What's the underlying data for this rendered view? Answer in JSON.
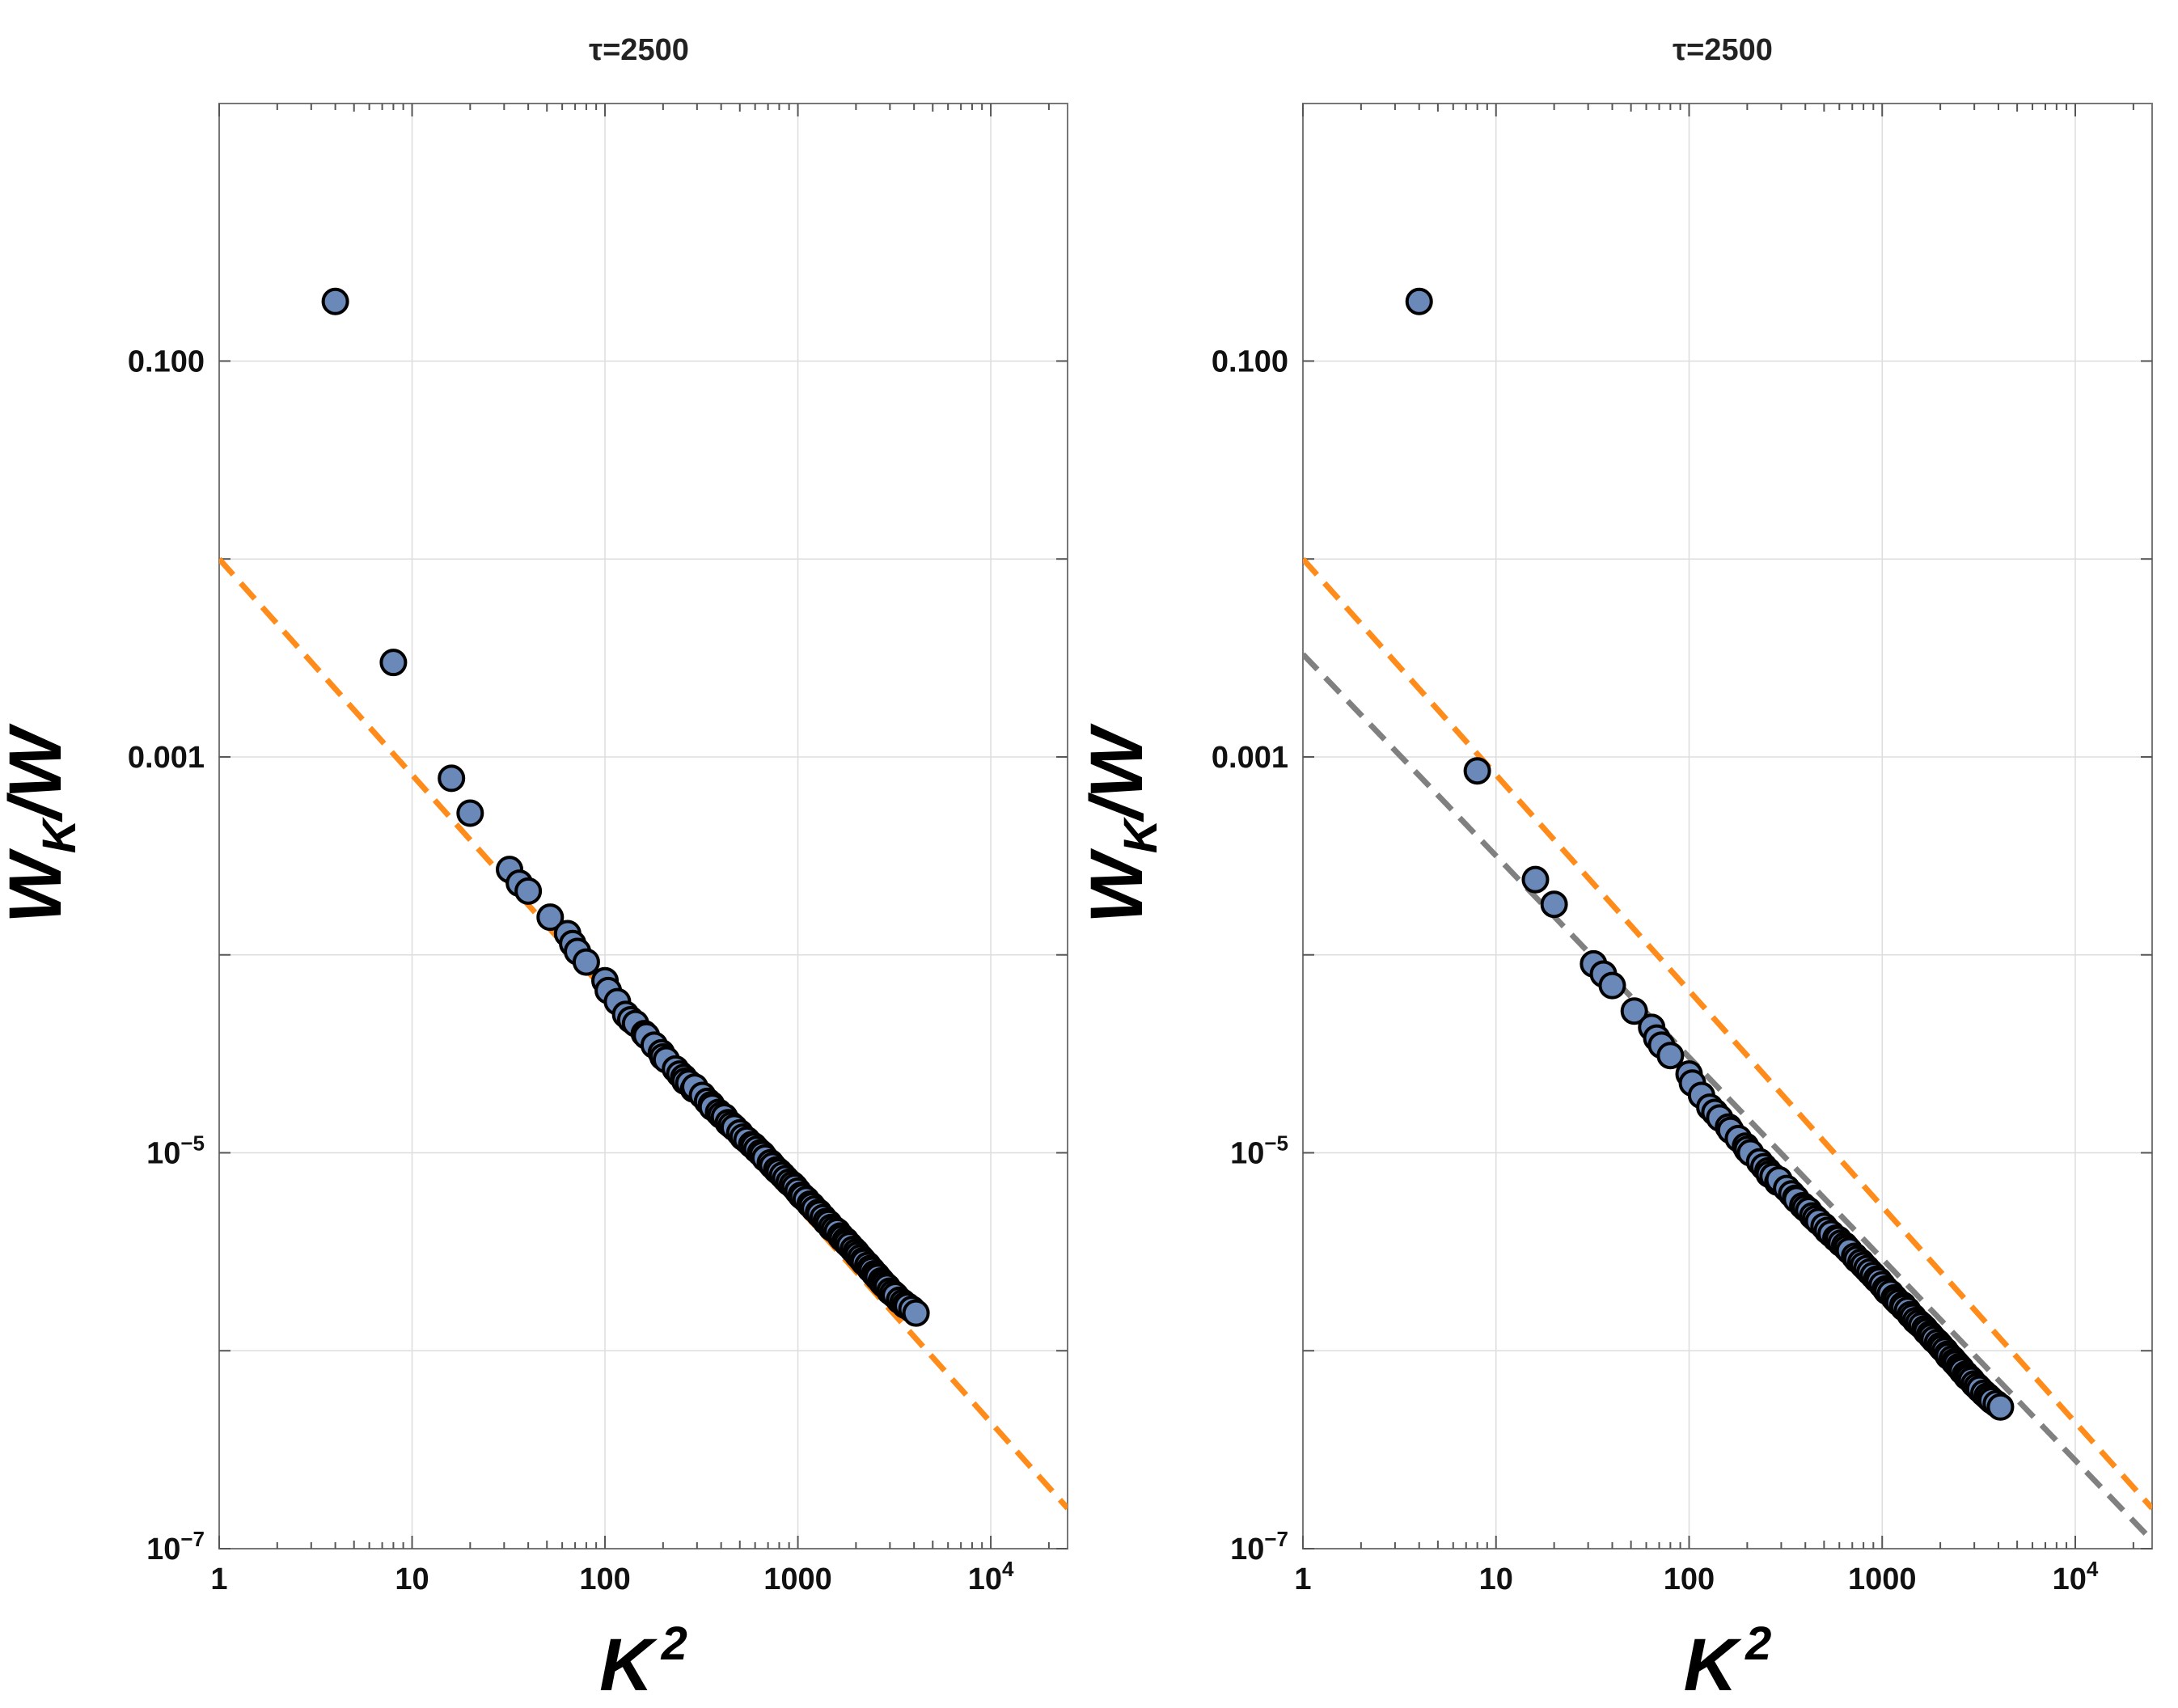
{
  "figure": {
    "panels_count": 2
  },
  "colors": {
    "marker_fill": "#6a88b8",
    "marker_edge": "#000000",
    "orange": "#ff8c1a",
    "gray": "#808080",
    "grid": "#dddddd",
    "frame": "#777777"
  },
  "chart_data": [
    {
      "type": "scatter",
      "title": "τ=2500",
      "xlabel": "K²",
      "ylabel": "W_K/W",
      "xlabel_main": "K",
      "xlabel_sup": "2",
      "ylabel_main": "W",
      "ylabel_sub": "K",
      "ylabel_tail": "/W",
      "xscale": "log",
      "yscale": "log",
      "xlim": [
        1,
        25000
      ],
      "ylim": [
        1e-07,
        2
      ],
      "grid": true,
      "x_ticks": [
        {
          "value": 1,
          "label": "1"
        },
        {
          "value": 10,
          "label": "10"
        },
        {
          "value": 100,
          "label": "100"
        },
        {
          "value": 1000,
          "label": "1000"
        },
        {
          "value": 10000,
          "label": "10",
          "exp": "4"
        }
      ],
      "y_ticks": [
        {
          "value": 0.1,
          "label": "0.100"
        },
        {
          "value": 0.001,
          "label": "0.001"
        },
        {
          "value": 1e-05,
          "label": "10",
          "exp": "−5"
        },
        {
          "value": 1e-07,
          "label": "10",
          "exp": "−7"
        }
      ],
      "y_minor_ticks": [
        0.01,
        0.0001,
        1e-06
      ],
      "lines": [
        {
          "name": "orange fit",
          "color": "#ff8c1a",
          "style": "dashed",
          "x": [
            1,
            25000
          ],
          "y": [
            0.01,
            1.6e-07
          ]
        }
      ],
      "series": [
        {
          "name": "data",
          "x": [
            4,
            8,
            16,
            20,
            32,
            36,
            40,
            52,
            64,
            68,
            72,
            80,
            100,
            104,
            116,
            128,
            136,
            144,
            160,
            164,
            180,
            196,
            200,
            208,
            232,
            244,
            256,
            260,
            272,
            288,
            292,
            320,
            340,
            356,
            360,
            388,
            400,
            416,
            436,
            452,
            468,
            500,
            520,
            544,
            576,
            592,
            612,
            640,
            656,
            676,
            720,
            740,
            776,
            800,
            832,
            864,
            900,
            936,
            964,
            1000,
            1040,
            1060,
            1104,
            1156,
            1184,
            1220,
            1280,
            1296,
            1352,
            1400,
            1444,
            1492,
            1544,
            1600,
            1664,
            1700,
            1764,
            1800,
            1856,
            1936,
            2000,
            2048,
            2116,
            2180,
            2208,
            2304,
            2368,
            2420,
            2500,
            2560,
            2600,
            2704,
            2752,
            2816,
            2900,
            3000,
            3104,
            3200,
            3364,
            3500,
            3600,
            3700,
            3900,
            4096
          ],
          "y": [
            0.2,
            0.003,
            0.00078,
            0.00052,
            0.00027,
            0.00023,
            0.00021,
            0.000155,
            0.000128,
            0.000114,
            0.000104,
            9.2e-05,
            7.4e-05,
            6.6e-05,
            5.8e-05,
            5e-05,
            4.7e-05,
            4.5e-05,
            4e-05,
            3.9e-05,
            3.5e-05,
            3.2e-05,
            3.05e-05,
            2.95e-05,
            2.65e-05,
            2.5e-05,
            2.4e-05,
            2.3e-05,
            2.25e-05,
            2.1e-05,
            2.15e-05,
            1.95e-05,
            1.82e-05,
            1.75e-05,
            1.7e-05,
            1.6e-05,
            1.55e-05,
            1.52e-05,
            1.42e-05,
            1.38e-05,
            1.34e-05,
            1.26e-05,
            1.2e-05,
            1.16e-05,
            1.1e-05,
            1.08e-05,
            1.04e-05,
            1e-05,
            9.8e-06,
            9.4e-06,
            8.9e-06,
            8.6e-06,
            8.2e-06,
            8e-06,
            7.7e-06,
            7.4e-06,
            7.1e-06,
            6.9e-06,
            6.7e-06,
            6.4e-06,
            6.1e-06,
            6e-06,
            5.8e-06,
            5.5e-06,
            5.4e-06,
            5.2e-06,
            5e-06,
            4.9e-06,
            4.7e-06,
            4.5e-06,
            4.4e-06,
            4.2e-06,
            4.1e-06,
            4e-06,
            3.8e-06,
            3.7e-06,
            3.6e-06,
            3.5e-06,
            3.4e-06,
            3.25e-06,
            3.15e-06,
            3.05e-06,
            2.95e-06,
            2.85e-06,
            2.8e-06,
            2.7e-06,
            2.6e-06,
            2.55e-06,
            2.45e-06,
            2.4e-06,
            2.35e-06,
            2.25e-06,
            2.2e-06,
            2.15e-06,
            2.1e-06,
            2e-06,
            1.95e-06,
            1.9e-06,
            1.8e-06,
            1.75e-06,
            1.7e-06,
            1.68e-06,
            1.62e-06,
            1.55e-06
          ]
        }
      ]
    },
    {
      "type": "scatter",
      "title": "τ=2500",
      "xlabel": "K²",
      "ylabel": "W_K/W",
      "xlabel_main": "K",
      "xlabel_sup": "2",
      "ylabel_main": "W",
      "ylabel_sub": "K",
      "ylabel_tail": "/W",
      "xscale": "log",
      "yscale": "log",
      "xlim": [
        1,
        25000
      ],
      "ylim": [
        1e-07,
        2
      ],
      "grid": true,
      "x_ticks": [
        {
          "value": 1,
          "label": "1"
        },
        {
          "value": 10,
          "label": "10"
        },
        {
          "value": 100,
          "label": "100"
        },
        {
          "value": 1000,
          "label": "1000"
        },
        {
          "value": 10000,
          "label": "10",
          "exp": "4"
        }
      ],
      "y_ticks": [
        {
          "value": 0.1,
          "label": "0.100"
        },
        {
          "value": 0.001,
          "label": "0.001"
        },
        {
          "value": 1e-05,
          "label": "10",
          "exp": "−5"
        },
        {
          "value": 1e-07,
          "label": "10",
          "exp": "−7"
        }
      ],
      "y_minor_ticks": [
        0.01,
        0.0001,
        1e-06
      ],
      "lines": [
        {
          "name": "orange fit",
          "color": "#ff8c1a",
          "style": "dashed",
          "x": [
            1,
            25000
          ],
          "y": [
            0.01,
            1.6e-07
          ]
        },
        {
          "name": "gray fit",
          "color": "#808080",
          "style": "dashed",
          "x": [
            1,
            25000
          ],
          "y": [
            0.0033,
            1.1e-07
          ]
        }
      ],
      "series": [
        {
          "name": "data",
          "x": [
            4,
            8,
            16,
            20,
            32,
            36,
            40,
            52,
            64,
            68,
            72,
            80,
            100,
            104,
            116,
            128,
            136,
            144,
            160,
            164,
            180,
            196,
            200,
            208,
            232,
            244,
            256,
            260,
            272,
            288,
            292,
            320,
            340,
            356,
            360,
            388,
            400,
            416,
            436,
            452,
            468,
            500,
            520,
            544,
            576,
            592,
            612,
            640,
            656,
            676,
            720,
            740,
            776,
            800,
            832,
            864,
            900,
            936,
            964,
            1000,
            1040,
            1060,
            1104,
            1156,
            1184,
            1220,
            1280,
            1296,
            1352,
            1400,
            1444,
            1492,
            1544,
            1600,
            1664,
            1700,
            1764,
            1800,
            1856,
            1936,
            2000,
            2048,
            2116,
            2180,
            2208,
            2304,
            2368,
            2420,
            2500,
            2560,
            2600,
            2704,
            2752,
            2816,
            2900,
            3000,
            3104,
            3200,
            3364,
            3500,
            3600,
            3700,
            3900,
            4096
          ],
          "y": [
            0.2,
            0.00085,
            0.00024,
            0.00018,
            9e-05,
            8e-05,
            7e-05,
            5.2e-05,
            4.3e-05,
            3.8e-05,
            3.5e-05,
            3.1e-05,
            2.5e-05,
            2.25e-05,
            1.95e-05,
            1.7e-05,
            1.6e-05,
            1.5e-05,
            1.35e-05,
            1.3e-05,
            1.18e-05,
            1.08e-05,
            1.04e-05,
            1e-05,
            9e-06,
            8.5e-06,
            8.1e-06,
            7.8e-06,
            7.6e-06,
            7.1e-06,
            7.3e-06,
            6.6e-06,
            6.2e-06,
            5.9e-06,
            5.8e-06,
            5.4e-06,
            5.25e-06,
            5.1e-06,
            4.8e-06,
            4.65e-06,
            4.5e-06,
            4.25e-06,
            4.05e-06,
            3.9e-06,
            3.7e-06,
            3.65e-06,
            3.5e-06,
            3.4e-06,
            3.3e-06,
            3.2e-06,
            3e-06,
            2.9e-06,
            2.8e-06,
            2.7e-06,
            2.6e-06,
            2.5e-06,
            2.4e-06,
            2.3e-06,
            2.25e-06,
            2.15e-06,
            2.05e-06,
            2e-06,
            1.95e-06,
            1.85e-06,
            1.8e-06,
            1.75e-06,
            1.7e-06,
            1.65e-06,
            1.6e-06,
            1.52e-06,
            1.48e-06,
            1.42e-06,
            1.38e-06,
            1.34e-06,
            1.29e-06,
            1.25e-06,
            1.21e-06,
            1.18e-06,
            1.14e-06,
            1.1e-06,
            1.06e-06,
            1.03e-06,
            1e-06,
            9.6e-07,
            9.4e-07,
            9.1e-07,
            8.8e-07,
            8.6e-07,
            8.3e-07,
            8.1e-07,
            7.9e-07,
            7.6e-07,
            7.4e-07,
            7.3e-07,
            7.1e-07,
            6.8e-07,
            6.6e-07,
            6.4e-07,
            6.1e-07,
            5.9e-07,
            5.75e-07,
            5.6e-07,
            5.4e-07,
            5.2e-07
          ]
        }
      ]
    }
  ]
}
